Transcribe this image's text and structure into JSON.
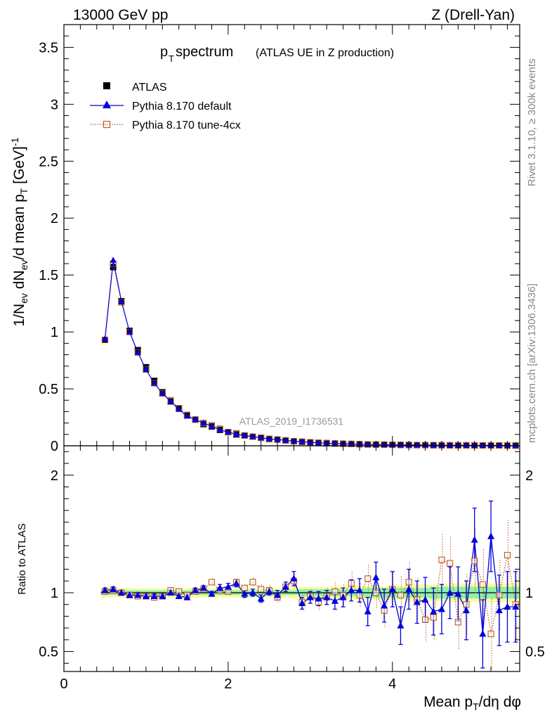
{
  "header": {
    "left": "13000 GeV pp",
    "right": "Z (Drell-Yan)"
  },
  "side_labels": {
    "rivet": "Rivet 3.1.10, ≥ 300k events",
    "mcplots": "mcplots.cern.ch [arXiv:1306.3436]"
  },
  "chart_data": [
    {
      "type": "line",
      "panel": "main",
      "title_main": "p",
      "title_sub": "T",
      "title_rest": " spectrum",
      "title_note": "(ATLAS UE in Z production)",
      "ylabel": "1/N_ev dN_ev/d mean p_T [GeV]^-1",
      "xlim": [
        0,
        5.55
      ],
      "ylim": [
        0,
        3.7
      ],
      "yticks": [
        0,
        0.5,
        1,
        1.5,
        2,
        2.5,
        3,
        3.5
      ],
      "ytick_labels": [
        "0",
        "0.5",
        "1",
        "1.5",
        "2",
        "2.5",
        "3",
        "3.5"
      ],
      "watermark": "ATLAS_2019_I1736531",
      "legend": {
        "atlas": "ATLAS",
        "default": "Pythia 8.170 default",
        "tune": "Pythia 8.170 tune-4cx",
        "position": "top-left"
      },
      "x": [
        0.5,
        0.6,
        0.7,
        0.8,
        0.9,
        1.0,
        1.1,
        1.2,
        1.3,
        1.4,
        1.5,
        1.6,
        1.7,
        1.8,
        1.9,
        2.0,
        2.1,
        2.2,
        2.3,
        2.4,
        2.5,
        2.6,
        2.7,
        2.8,
        2.9,
        3.0,
        3.1,
        3.2,
        3.3,
        3.4,
        3.5,
        3.6,
        3.7,
        3.8,
        3.9,
        4.0,
        4.1,
        4.2,
        4.3,
        4.4,
        4.5,
        4.6,
        4.7,
        4.8,
        4.9,
        5.0,
        5.1,
        5.2,
        5.3,
        5.4,
        5.5
      ],
      "series": [
        {
          "name": "ATLAS",
          "values": [
            0.93,
            1.57,
            1.27,
            1.01,
            0.84,
            0.69,
            0.57,
            0.47,
            0.39,
            0.33,
            0.27,
            0.23,
            0.19,
            0.17,
            0.14,
            0.12,
            0.1,
            0.09,
            0.08,
            0.07,
            0.06,
            0.055,
            0.047,
            0.04,
            0.035,
            0.03,
            0.026,
            0.023,
            0.02,
            0.018,
            0.016,
            0.014,
            0.012,
            0.011,
            0.01,
            0.009,
            0.008,
            0.007,
            0.006,
            0.006,
            0.005,
            0.005,
            0.004,
            0.004,
            0.004,
            0.003,
            0.003,
            0.003,
            0.003,
            0.002,
            0.002
          ]
        },
        {
          "name": "Pythia 8.170 default",
          "values": [
            0.94,
            1.63,
            1.27,
            1.0,
            0.82,
            0.67,
            0.55,
            0.46,
            0.39,
            0.32,
            0.26,
            0.23,
            0.2,
            0.17,
            0.14,
            0.12,
            0.1,
            0.09,
            0.08,
            0.07,
            0.06,
            0.055,
            0.048,
            0.04,
            0.035,
            0.03,
            0.026,
            0.023,
            0.02,
            0.018,
            0.016,
            0.014,
            0.011,
            0.011,
            0.01,
            0.009,
            0.007,
            0.007,
            0.006,
            0.006,
            0.005,
            0.005,
            0.004,
            0.004,
            0.004,
            0.003,
            0.003,
            0.003,
            0.003,
            0.002,
            0.002
          ]
        },
        {
          "name": "Pythia 8.170 tune-4cx",
          "values": [
            0.93,
            1.6,
            1.26,
            1.0,
            0.82,
            0.67,
            0.55,
            0.46,
            0.4,
            0.33,
            0.27,
            0.23,
            0.2,
            0.18,
            0.15,
            0.12,
            0.11,
            0.09,
            0.08,
            0.07,
            0.06,
            0.055,
            0.047,
            0.04,
            0.035,
            0.03,
            0.026,
            0.023,
            0.02,
            0.018,
            0.016,
            0.014,
            0.012,
            0.011,
            0.01,
            0.009,
            0.008,
            0.007,
            0.006,
            0.006,
            0.005,
            0.005,
            0.004,
            0.004,
            0.004,
            0.003,
            0.003,
            0.003,
            0.003,
            0.002,
            0.002
          ]
        }
      ]
    },
    {
      "type": "line",
      "panel": "ratio",
      "ylabel": "Ratio to ATLAS",
      "xlabel": "Mean p_T/dη dφ",
      "xlim": [
        0,
        5.55
      ],
      "ylim": [
        0.33,
        2.25
      ],
      "yticks": [
        0.5,
        1,
        2
      ],
      "ytick_labels": [
        "0.5",
        "1",
        "2"
      ],
      "xticks": [
        0,
        2,
        4
      ],
      "xtick_labels": [
        "0",
        "2",
        "4"
      ],
      "x": [
        0.5,
        0.6,
        0.7,
        0.8,
        0.9,
        1.0,
        1.1,
        1.2,
        1.3,
        1.4,
        1.5,
        1.6,
        1.7,
        1.8,
        1.9,
        2.0,
        2.1,
        2.2,
        2.3,
        2.4,
        2.5,
        2.6,
        2.7,
        2.8,
        2.9,
        3.0,
        3.1,
        3.2,
        3.3,
        3.4,
        3.5,
        3.6,
        3.7,
        3.8,
        3.9,
        4.0,
        4.1,
        4.2,
        4.3,
        4.4,
        4.5,
        4.6,
        4.7,
        4.8,
        4.9,
        5.0,
        5.1,
        5.2,
        5.3,
        5.4,
        5.5
      ],
      "band_inner": [
        0.02,
        0.02,
        0.02,
        0.02,
        0.02,
        0.02,
        0.02,
        0.02,
        0.02,
        0.02,
        0.02,
        0.02,
        0.02,
        0.02,
        0.02,
        0.02,
        0.02,
        0.02,
        0.02,
        0.02,
        0.02,
        0.02,
        0.02,
        0.02,
        0.03,
        0.03,
        0.03,
        0.03,
        0.03,
        0.03,
        0.03,
        0.03,
        0.04,
        0.04,
        0.04,
        0.04,
        0.04,
        0.04,
        0.04,
        0.04,
        0.05,
        0.05,
        0.05,
        0.05,
        0.05,
        0.05,
        0.05,
        0.05,
        0.05,
        0.05,
        0.05
      ],
      "band_outer": [
        0.04,
        0.04,
        0.04,
        0.04,
        0.04,
        0.04,
        0.04,
        0.04,
        0.04,
        0.04,
        0.04,
        0.04,
        0.04,
        0.04,
        0.04,
        0.04,
        0.04,
        0.04,
        0.04,
        0.04,
        0.04,
        0.04,
        0.04,
        0.05,
        0.05,
        0.05,
        0.05,
        0.05,
        0.05,
        0.06,
        0.06,
        0.06,
        0.06,
        0.06,
        0.06,
        0.06,
        0.06,
        0.07,
        0.07,
        0.07,
        0.07,
        0.07,
        0.08,
        0.08,
        0.08,
        0.08,
        0.08,
        0.08,
        0.08,
        0.08,
        0.08
      ],
      "series": [
        {
          "name": "Pythia 8.170 default",
          "values": [
            1.02,
            1.03,
            1.0,
            0.98,
            0.98,
            0.97,
            0.97,
            0.97,
            1.0,
            0.97,
            0.96,
            1.02,
            1.04,
            0.99,
            1.04,
            1.05,
            1.08,
            0.99,
            1.0,
            0.95,
            1.01,
            0.98,
            1.05,
            1.12,
            0.91,
            0.96,
            0.95,
            0.96,
            0.93,
            0.96,
            1.02,
            1.02,
            0.84,
            1.13,
            0.89,
            1.03,
            0.72,
            1.03,
            0.92,
            0.94,
            0.84,
            0.86,
            1.0,
            0.99,
            0.85,
            1.45,
            0.65,
            1.48,
            0.85,
            0.88,
            0.88
          ],
          "errors": [
            0.02,
            0.02,
            0.02,
            0.02,
            0.02,
            0.02,
            0.02,
            0.02,
            0.02,
            0.02,
            0.02,
            0.02,
            0.02,
            0.02,
            0.03,
            0.03,
            0.03,
            0.03,
            0.03,
            0.03,
            0.03,
            0.04,
            0.04,
            0.06,
            0.05,
            0.05,
            0.06,
            0.06,
            0.07,
            0.08,
            0.09,
            0.1,
            0.12,
            0.13,
            0.14,
            0.15,
            0.16,
            0.17,
            0.18,
            0.19,
            0.2,
            0.21,
            0.22,
            0.23,
            0.25,
            0.27,
            0.29,
            0.3,
            0.3,
            0.3,
            0.3
          ]
        },
        {
          "name": "Pythia 8.170 tune-4cx",
          "values": [
            1.01,
            1.02,
            1.0,
            0.98,
            0.97,
            0.97,
            0.96,
            0.97,
            1.02,
            1.01,
            0.98,
            1.01,
            1.03,
            1.09,
            1.02,
            1.01,
            1.09,
            1.04,
            1.09,
            1.03,
            1.02,
            0.96,
            1.05,
            1.1,
            0.92,
            0.97,
            0.92,
            0.97,
            1.01,
            0.98,
            1.08,
            0.98,
            1.12,
            1.0,
            0.85,
            1.03,
            0.98,
            1.09,
            0.94,
            0.77,
            0.79,
            1.28,
            1.25,
            0.75,
            0.9,
            1.27,
            1.07,
            0.65,
            0.98,
            1.32,
            0.9
          ],
          "errors": [
            0.02,
            0.02,
            0.02,
            0.02,
            0.02,
            0.02,
            0.02,
            0.02,
            0.02,
            0.02,
            0.02,
            0.02,
            0.02,
            0.03,
            0.03,
            0.03,
            0.03,
            0.03,
            0.04,
            0.04,
            0.04,
            0.05,
            0.05,
            0.06,
            0.06,
            0.06,
            0.07,
            0.07,
            0.08,
            0.09,
            0.1,
            0.1,
            0.12,
            0.13,
            0.14,
            0.15,
            0.16,
            0.17,
            0.18,
            0.19,
            0.2,
            0.22,
            0.23,
            0.24,
            0.26,
            0.28,
            0.3,
            0.3,
            0.3,
            0.3,
            0.3
          ]
        }
      ]
    }
  ],
  "colors": {
    "atlas": "#000000",
    "default": "#0000dd",
    "tune": "#b85c1f",
    "band_inner": "#90f0a8",
    "band_outer": "#fbfba0",
    "axis": "#000000",
    "side_text": "#888888"
  }
}
